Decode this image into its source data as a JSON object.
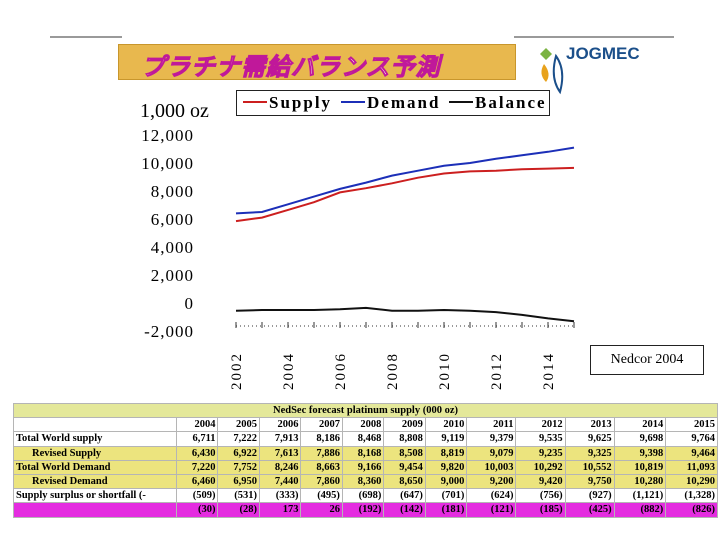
{
  "header": {
    "title": "プラチナ需給バランス予測",
    "brand": "JOGMEC"
  },
  "chart_data": {
    "type": "line",
    "unit_label": "1,000 oz",
    "x": [
      2002,
      2003,
      2004,
      2005,
      2006,
      2007,
      2008,
      2009,
      2010,
      2011,
      2012,
      2013,
      2014,
      2015
    ],
    "x_ticks": [
      "2002",
      "2004",
      "2006",
      "2008",
      "2010",
      "2012",
      "2014"
    ],
    "y_ticks": [
      "12,000",
      "10,000",
      "8,000",
      "6,000",
      "4,000",
      "2,000",
      "0",
      "-2,000"
    ],
    "ylim": [
      -2000,
      12000
    ],
    "series": [
      {
        "name": "Supply",
        "color": "#cc1f1f",
        "values": [
          5850,
          6100,
          6650,
          7200,
          7900,
          8200,
          8550,
          8950,
          9250,
          9400,
          9450,
          9550,
          9600,
          9650
        ]
      },
      {
        "name": "Demand",
        "color": "#1c2fb8",
        "values": [
          6400,
          6500,
          7050,
          7600,
          8150,
          8600,
          9100,
          9450,
          9800,
          10000,
          10300,
          10550,
          10800,
          11100
        ]
      },
      {
        "name": "Balance",
        "color": "#111111",
        "values": [
          -550,
          -500,
          -500,
          -500,
          -450,
          -350,
          -550,
          -550,
          -500,
          -550,
          -650,
          -850,
          -1100,
          -1300
        ]
      }
    ],
    "legend_position": "top"
  },
  "source_note": "Nedcor 2004",
  "table": {
    "title": "NedSec forecast platinum supply (000 oz)",
    "years": [
      "2004",
      "2005",
      "2006",
      "2007",
      "2008",
      "2009",
      "2010",
      "2011",
      "2012",
      "2013",
      "2014",
      "2015"
    ],
    "rows": [
      {
        "label": "Total World supply",
        "values": [
          "6,711",
          "7,222",
          "7,913",
          "8,186",
          "8,468",
          "8,808",
          "9,119",
          "9,379",
          "9,535",
          "9,625",
          "9,698",
          "9,764"
        ]
      },
      {
        "label": "Revised Supply",
        "values": [
          "6,430",
          "6,922",
          "7,613",
          "7,886",
          "8,168",
          "8,508",
          "8,819",
          "9,079",
          "9,235",
          "9,325",
          "9,398",
          "9,464"
        ]
      },
      {
        "label": "Total World Demand",
        "values": [
          "7,220",
          "7,752",
          "8,246",
          "8,663",
          "9,166",
          "9,454",
          "9,820",
          "10,003",
          "10,292",
          "10,552",
          "10,819",
          "11,093"
        ]
      },
      {
        "label": "Revised Demand",
        "values": [
          "6,460",
          "6,950",
          "7,440",
          "7,860",
          "8,360",
          "8,650",
          "9,000",
          "9,200",
          "9,420",
          "9,750",
          "10,280",
          "10,290"
        ]
      },
      {
        "label": "Supply surplus or shortfall (-",
        "values": [
          "(509)",
          "(531)",
          "(333)",
          "(495)",
          "(698)",
          "(647)",
          "(701)",
          "(624)",
          "(756)",
          "(927)",
          "(1,121)",
          "(1,328)"
        ]
      },
      {
        "label": "",
        "values": [
          "(30)",
          "(28)",
          "173",
          "26",
          "(192)",
          "(142)",
          "(181)",
          "(121)",
          "(185)",
          "(425)",
          "(882)",
          "(826)"
        ]
      }
    ]
  }
}
